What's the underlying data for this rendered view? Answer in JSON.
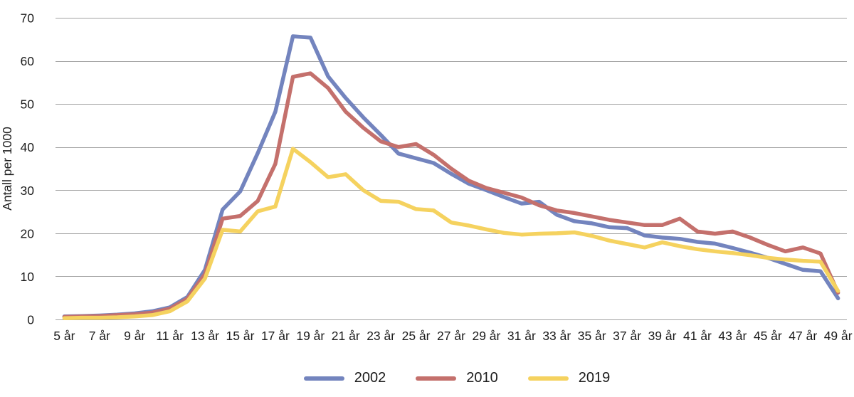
{
  "figure": {
    "background": "#ffffff",
    "text_color": "#1c1c1c",
    "gridline_color": "#a2a2a2"
  },
  "chart_data": {
    "type": "line",
    "title": "",
    "xlabel": "",
    "ylabel": "Antall per 1000",
    "ylim": [
      0,
      70
    ],
    "y_ticks": [
      0,
      10,
      20,
      30,
      40,
      50,
      60,
      70
    ],
    "grid": "horizontal",
    "legend_position": "bottom",
    "ages": [
      5,
      6,
      7,
      8,
      9,
      10,
      11,
      12,
      13,
      14,
      15,
      16,
      17,
      18,
      19,
      20,
      21,
      22,
      23,
      24,
      25,
      26,
      27,
      28,
      29,
      30,
      31,
      32,
      33,
      34,
      35,
      36,
      37,
      38,
      39,
      40,
      41,
      42,
      43,
      44,
      45,
      46,
      47,
      48,
      49
    ],
    "x_tick_labels": [
      "5 år",
      "7 år",
      "9 år",
      "11 år",
      "13 år",
      "15 år",
      "17 år",
      "19 år",
      "21 år",
      "23 år",
      "25 år",
      "27 år",
      "29 år",
      "31 år",
      "33 år",
      "35 år",
      "37 år",
      "39 år",
      "41 år",
      "43 år",
      "45 år",
      "47 år",
      "49 år"
    ],
    "series": [
      {
        "name": "2002",
        "color": "#7384BE",
        "values": [
          0.7,
          0.8,
          0.9,
          1.1,
          1.4,
          1.9,
          2.8,
          5.2,
          11.5,
          25.5,
          29.7,
          38.6,
          48.2,
          65.7,
          65.4,
          56.4,
          51.4,
          46.9,
          42.8,
          38.5,
          37.4,
          36.3,
          33.8,
          31.5,
          30.0,
          28.4,
          26.9,
          27.3,
          24.3,
          22.8,
          22.3,
          21.4,
          21.2,
          19.5,
          19.0,
          18.7,
          18.0,
          17.6,
          16.6,
          15.5,
          14.3,
          12.9,
          11.5,
          11.2,
          4.9
        ]
      },
      {
        "name": "2010",
        "color": "#C4706C",
        "values": [
          0.6,
          0.7,
          0.8,
          1.0,
          1.2,
          1.6,
          2.5,
          4.8,
          10.5,
          23.4,
          24.0,
          27.5,
          36.1,
          56.3,
          57.1,
          53.7,
          48.2,
          44.5,
          41.3,
          40.0,
          40.7,
          38.2,
          35.0,
          32.2,
          30.5,
          29.4,
          28.3,
          26.5,
          25.3,
          24.7,
          23.9,
          23.1,
          22.5,
          21.9,
          21.9,
          23.4,
          20.4,
          19.9,
          20.4,
          19.0,
          17.3,
          15.8,
          16.7,
          15.3,
          6.2
        ]
      },
      {
        "name": "2019",
        "color": "#F5D25F",
        "values": [
          0.3,
          0.4,
          0.4,
          0.5,
          0.7,
          1.0,
          1.9,
          4.2,
          9.5,
          20.8,
          20.4,
          25.1,
          26.2,
          39.6,
          36.5,
          33.0,
          33.7,
          30.0,
          27.5,
          27.3,
          25.6,
          25.3,
          22.5,
          21.8,
          20.9,
          20.1,
          19.7,
          19.9,
          20.0,
          20.2,
          19.4,
          18.3,
          17.5,
          16.7,
          17.9,
          17.0,
          16.3,
          15.8,
          15.4,
          14.9,
          14.3,
          13.9,
          13.6,
          13.4,
          6.6
        ]
      }
    ]
  }
}
